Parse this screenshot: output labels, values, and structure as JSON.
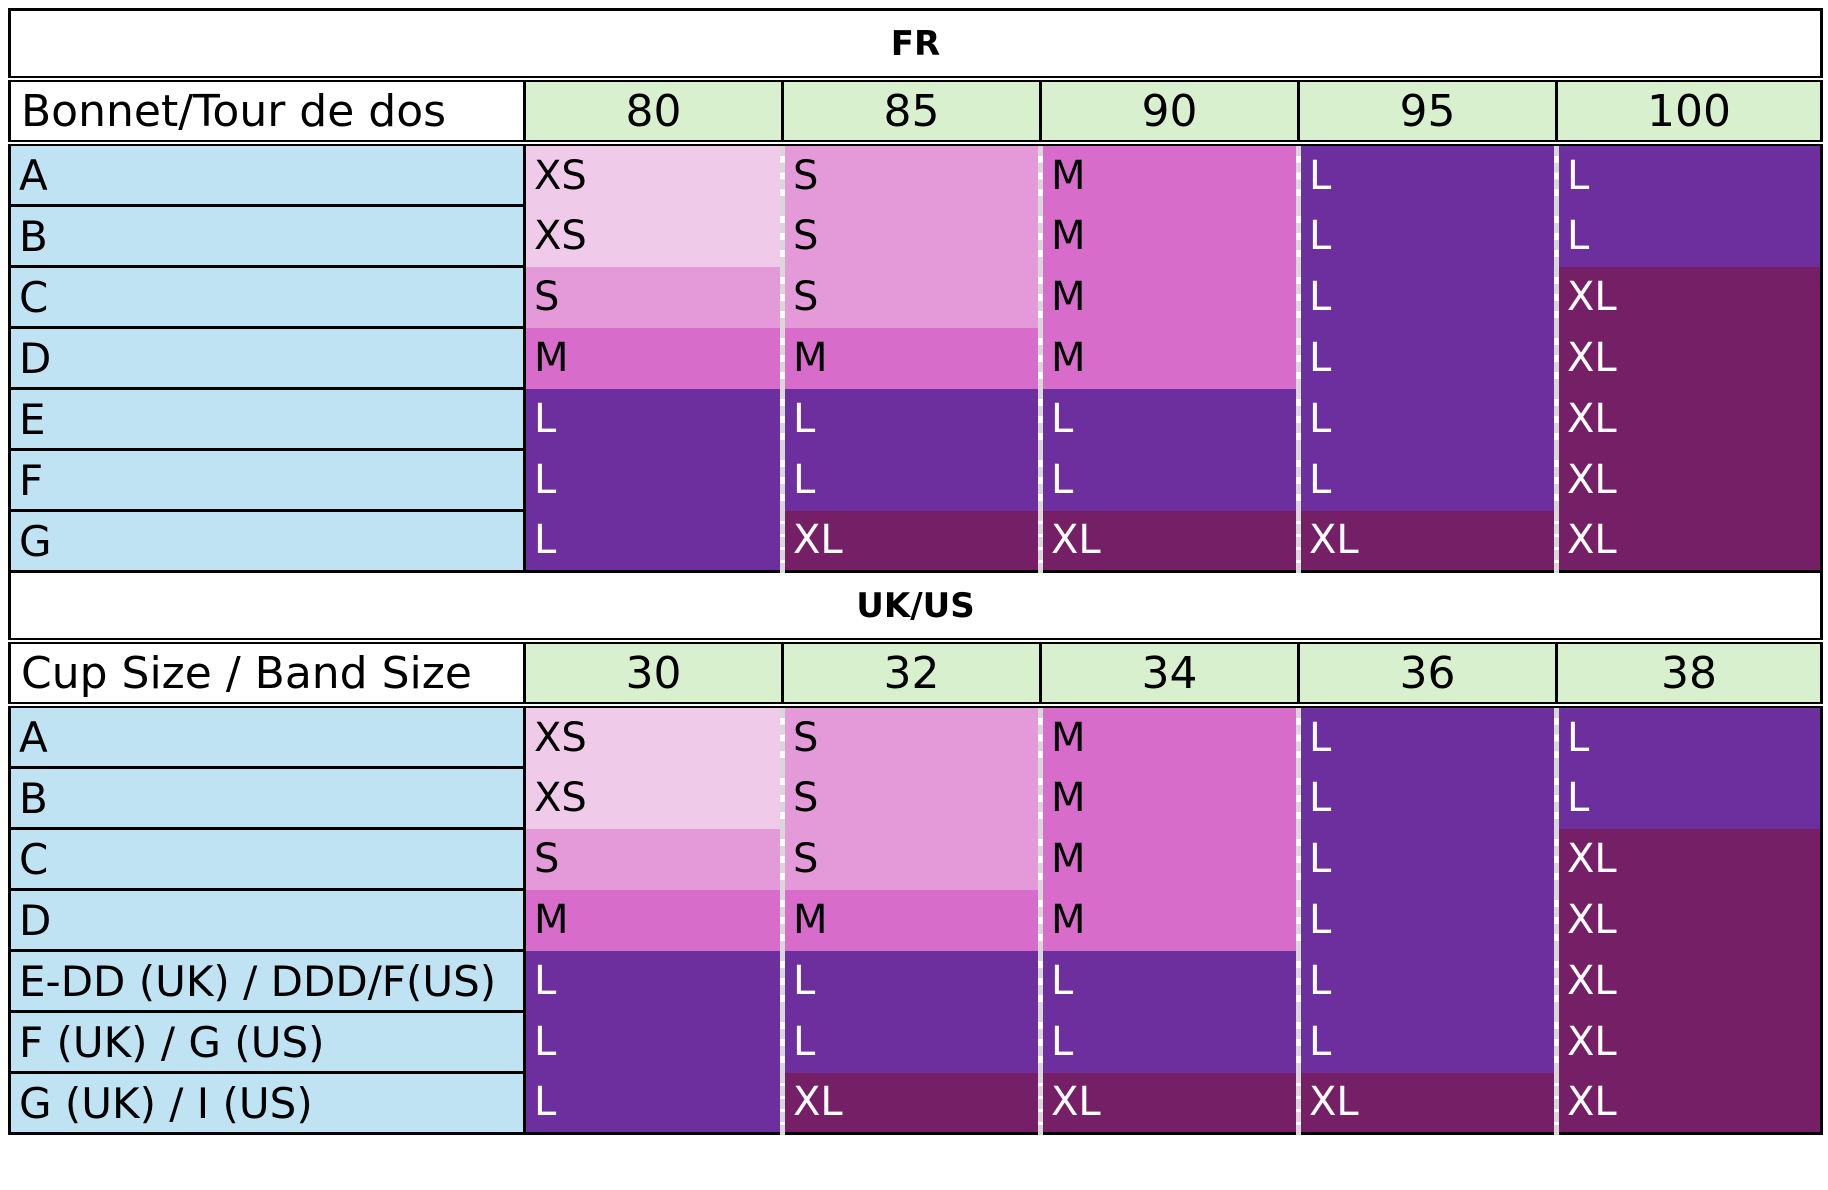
{
  "fr": {
    "title": "FR",
    "corner_label": "Bonnet/Tour de dos",
    "bands": [
      "80",
      "85",
      "90",
      "95",
      "100"
    ],
    "rows": [
      {
        "cup": "A",
        "sizes": [
          "XS",
          "S",
          "M",
          "L",
          "L"
        ]
      },
      {
        "cup": "B",
        "sizes": [
          "XS",
          "S",
          "M",
          "L",
          "L"
        ]
      },
      {
        "cup": "C",
        "sizes": [
          "S",
          "S",
          "M",
          "L",
          "XL"
        ]
      },
      {
        "cup": "D",
        "sizes": [
          "M",
          "M",
          "M",
          "L",
          "XL"
        ]
      },
      {
        "cup": "E",
        "sizes": [
          "L",
          "L",
          "L",
          "L",
          "XL"
        ]
      },
      {
        "cup": "F",
        "sizes": [
          "L",
          "L",
          "L",
          "L",
          "XL"
        ]
      },
      {
        "cup": "G",
        "sizes": [
          "L",
          "XL",
          "XL",
          "XL",
          "XL"
        ]
      }
    ]
  },
  "ukus": {
    "title": "UK/US",
    "corner_label": "Cup Size / Band Size",
    "bands": [
      "30",
      "32",
      "34",
      "36",
      "38"
    ],
    "rows": [
      {
        "cup": "A",
        "sizes": [
          "XS",
          "S",
          "M",
          "L",
          "L"
        ]
      },
      {
        "cup": "B",
        "sizes": [
          "XS",
          "S",
          "M",
          "L",
          "L"
        ]
      },
      {
        "cup": "C",
        "sizes": [
          "S",
          "S",
          "M",
          "L",
          "XL"
        ]
      },
      {
        "cup": "D",
        "sizes": [
          "M",
          "M",
          "M",
          "L",
          "XL"
        ]
      },
      {
        "cup": "E-DD (UK) / DDD/F(US)",
        "sizes": [
          "L",
          "L",
          "L",
          "L",
          "XL"
        ]
      },
      {
        "cup": "F (UK) / G (US)",
        "sizes": [
          "L",
          "L",
          "L",
          "L",
          "XL"
        ]
      },
      {
        "cup": "G (UK) / I (US)",
        "sizes": [
          "L",
          "XL",
          "XL",
          "XL",
          "XL"
        ]
      }
    ]
  },
  "size_colors": {
    "XS": "#f0cbe9",
    "S": "#e49ad9",
    "M": "#d86cca",
    "L": "#6e2f9e",
    "XL": "#741f66"
  },
  "cup_column_color": "#bfe3f3",
  "band_header_color": "#d9f0cf"
}
